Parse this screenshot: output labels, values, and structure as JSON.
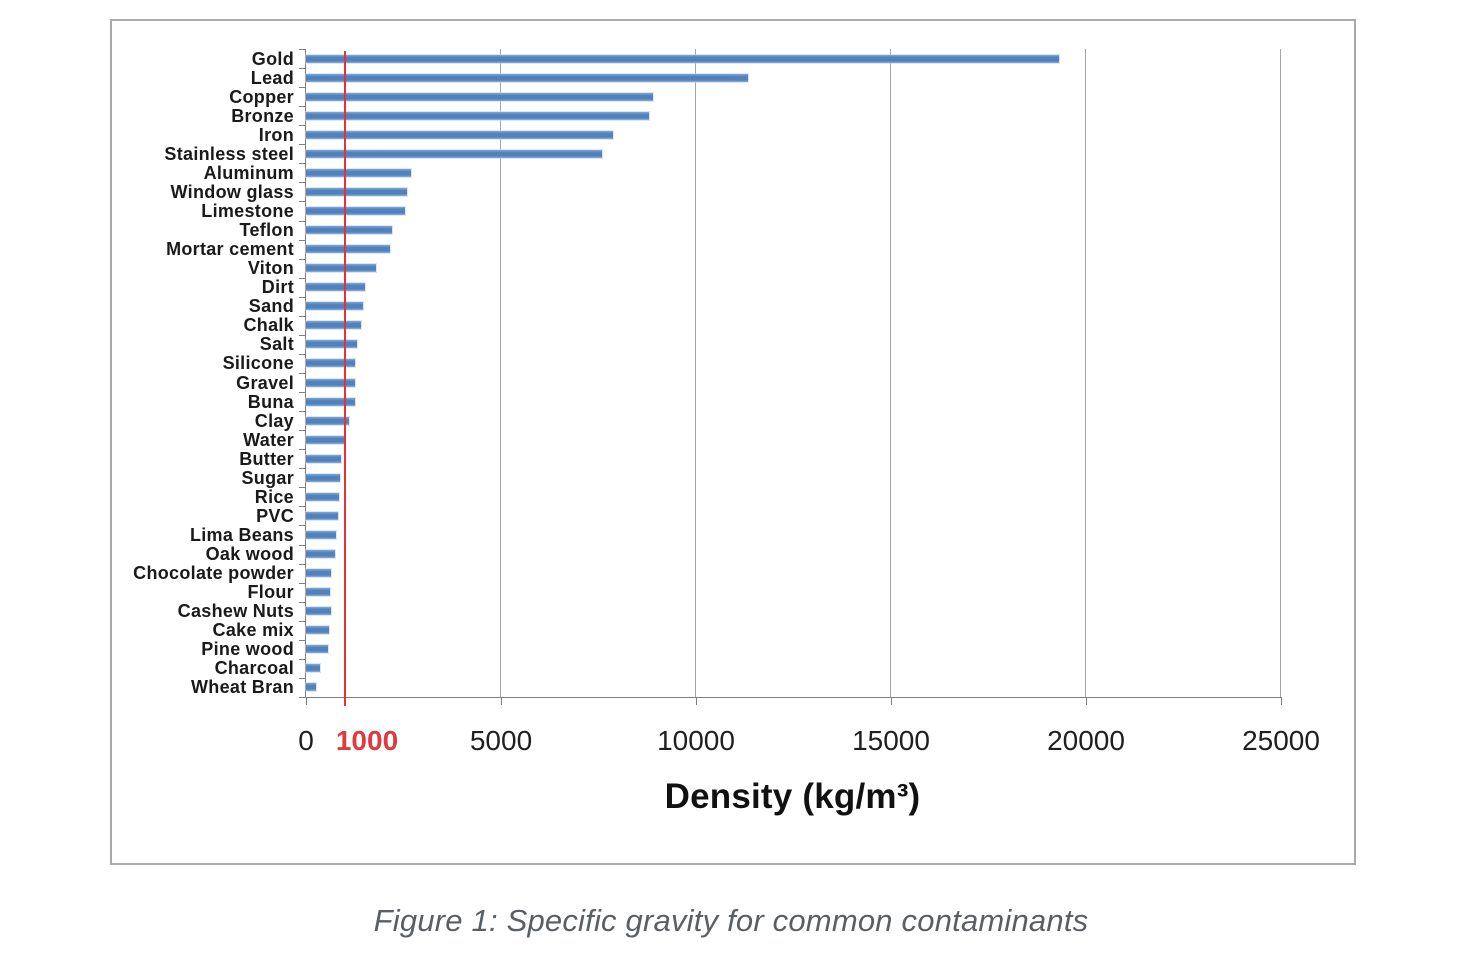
{
  "caption": "Figure 1: Specific gravity for common contaminants",
  "chart_data": {
    "type": "bar",
    "orientation": "horizontal",
    "title": "",
    "xlabel": "Density (kg/m³)",
    "ylabel": "",
    "xlim": [
      0,
      25000
    ],
    "grid": true,
    "legend": "none",
    "bar_color": "#4f81bd",
    "axis_color": "#7f7f7f",
    "gridline_color": "#a6a6a6",
    "reference_line": {
      "value": 1000,
      "color": "#e73137",
      "label": "1000"
    },
    "x_ticks": [
      {
        "value": 0,
        "label": "0",
        "highlight": false
      },
      {
        "value": 1000,
        "label": "1000",
        "highlight": true
      },
      {
        "value": 5000,
        "label": "5000",
        "highlight": false
      },
      {
        "value": 10000,
        "label": "10000",
        "highlight": false
      },
      {
        "value": 15000,
        "label": "15000",
        "highlight": false
      },
      {
        "value": 20000,
        "label": "20000",
        "highlight": false
      },
      {
        "value": 25000,
        "label": "25000",
        "highlight": false
      }
    ],
    "gridline_values": [
      5000,
      10000,
      15000,
      20000,
      25000
    ],
    "categories": [
      "Gold",
      "Lead",
      "Copper",
      "Bronze",
      "Iron",
      "Stainless steel",
      "Aluminum",
      "Window glass",
      "Limestone",
      "Teflon",
      "Mortar cement",
      "Viton",
      "Dirt",
      "Sand",
      "Chalk",
      "Salt",
      "Silicone",
      "Gravel",
      "Buna",
      "Clay",
      "Water",
      "Butter",
      "Sugar",
      "Rice",
      "PVC",
      "Lima Beans",
      "Oak wood",
      "Chocolate powder",
      "Flour",
      "Cashew Nuts",
      "Cake mix",
      "Pine wood",
      "Charcoal",
      "Wheat Bran"
    ],
    "values": [
      19300,
      11340,
      8900,
      8800,
      7870,
      7600,
      2700,
      2600,
      2550,
      2200,
      2150,
      1800,
      1500,
      1450,
      1400,
      1300,
      1250,
      1250,
      1250,
      1100,
      1000,
      900,
      870,
      850,
      830,
      770,
      750,
      640,
      620,
      640,
      600,
      560,
      370,
      260
    ],
    "highlight_label_color": "#e0393e",
    "tick_label_color": "#1f1f1f"
  }
}
